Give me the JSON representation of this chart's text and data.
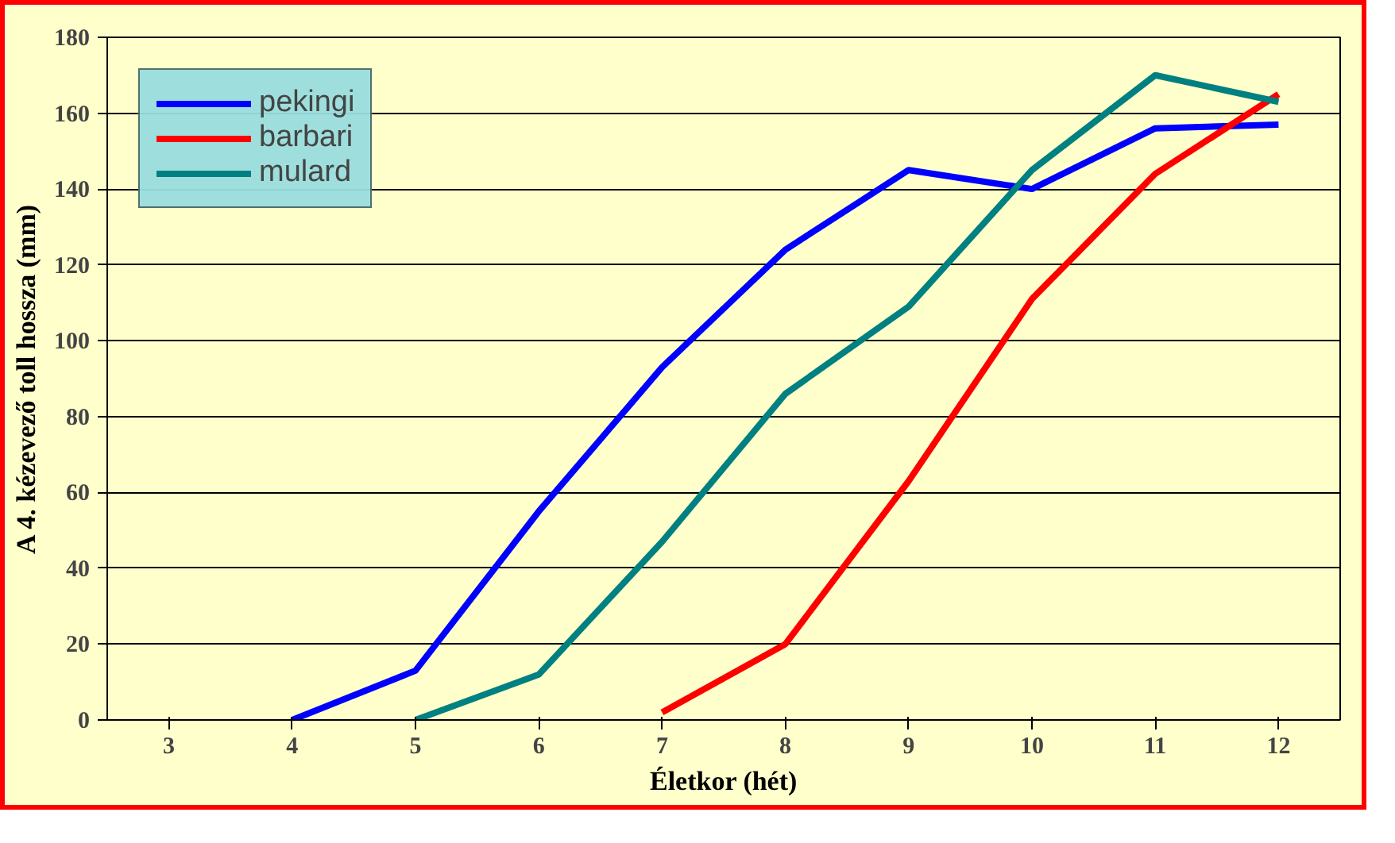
{
  "chart_data": {
    "type": "line",
    "xlabel": "Életkor (hét)",
    "ylabel": "A 4. kézevező toll hossza (mm)",
    "categories": [
      "3",
      "4",
      "5",
      "6",
      "7",
      "8",
      "9",
      "10",
      "11",
      "12"
    ],
    "series": [
      {
        "name": "pekingi",
        "color": "#0000ff",
        "values": [
          null,
          0,
          13,
          55,
          93,
          124,
          145,
          140,
          156,
          157
        ]
      },
      {
        "name": "barbari",
        "color": "#ff0000",
        "values": [
          null,
          null,
          null,
          null,
          2,
          20,
          63,
          111,
          144,
          165
        ]
      },
      {
        "name": "mulard",
        "color": "#008080",
        "values": [
          null,
          null,
          0,
          12,
          47,
          86,
          109,
          145,
          170,
          163
        ]
      }
    ],
    "ylim": [
      0,
      180
    ],
    "yticks": [
      0,
      20,
      40,
      60,
      80,
      100,
      120,
      140,
      160,
      180
    ],
    "grid": "y",
    "legend": "top left",
    "marker": "none",
    "line_style": "solid"
  }
}
